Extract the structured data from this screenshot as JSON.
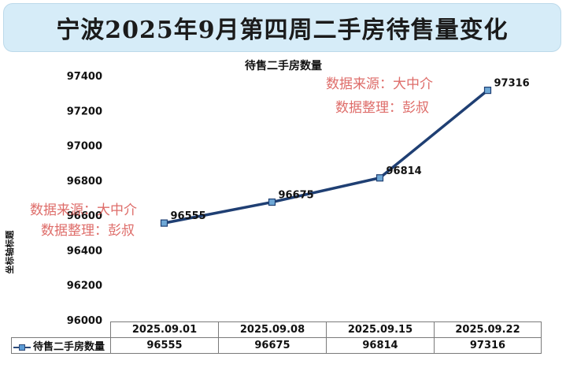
{
  "banner_title": "宁波2025年9月第四周二手房待售量变化",
  "watermarks": [
    {
      "line1": "数据来源：大中介",
      "line2": "数据整理：彭叔"
    },
    {
      "line1": "数据来源：大中介",
      "line2": "数据整理：彭叔"
    }
  ],
  "colors": {
    "line": "#1f3f73",
    "marker_fill": "#6fa8d6",
    "banner_bg": "#d6ecf8",
    "watermark": "#d9534f"
  },
  "chart_data": {
    "type": "line",
    "title": "待售二手房数量",
    "xlabel": "",
    "ylabel": "坐标轴标题",
    "categories": [
      "2025.09.01",
      "2025.09.08",
      "2025.09.15",
      "2025.09.22"
    ],
    "series": [
      {
        "name": "待售二手房数量",
        "values": [
          96555,
          96675,
          96814,
          97316
        ]
      }
    ],
    "ylim": [
      96000,
      97400
    ],
    "yticks": [
      "97400",
      "97200",
      "97000",
      "96800",
      "96600",
      "96400",
      "96200",
      "96000"
    ],
    "data_labels": [
      "96555",
      "96675",
      "96814",
      "97316"
    ],
    "grid": false,
    "legend": "data-table"
  },
  "table": {
    "legend_label": "待售二手房数量",
    "headers": [
      "2025.09.01",
      "2025.09.08",
      "2025.09.15",
      "2025.09.22"
    ],
    "values": [
      "96555",
      "96675",
      "96814",
      "97316"
    ]
  }
}
